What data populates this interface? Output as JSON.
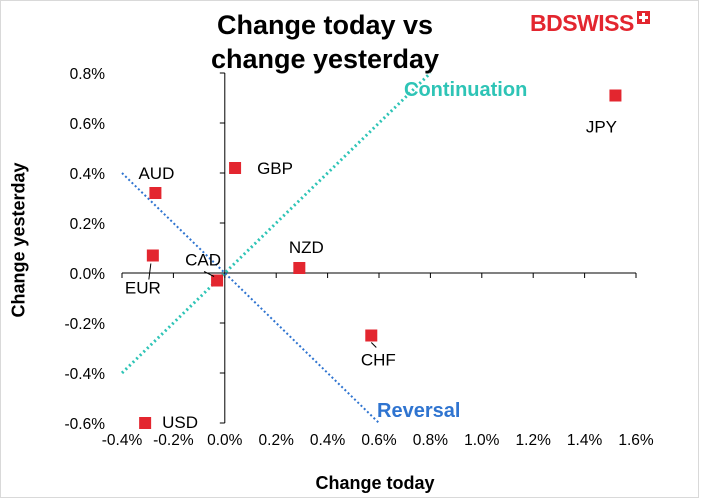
{
  "chart_data": {
    "type": "scatter",
    "title": "Change today vs change yesterday",
    "xlabel": "Change today",
    "ylabel": "Change yesterday",
    "xlim": [
      -0.4,
      1.6
    ],
    "ylim": [
      -0.6,
      0.8
    ],
    "x_ticks": [
      "-0.4%",
      "-0.2%",
      "0.0%",
      "0.2%",
      "0.4%",
      "0.6%",
      "0.8%",
      "1.0%",
      "1.2%",
      "1.4%",
      "1.6%"
    ],
    "y_ticks": [
      "0.8%",
      "0.6%",
      "0.4%",
      "0.2%",
      "0.0%",
      "-0.2%",
      "-0.4%",
      "-0.6%"
    ],
    "points": [
      {
        "label": "JPY",
        "x": 1.52,
        "y": 0.71
      },
      {
        "label": "GBP",
        "x": 0.04,
        "y": 0.42
      },
      {
        "label": "AUD",
        "x": -0.27,
        "y": 0.32
      },
      {
        "label": "EUR",
        "x": -0.28,
        "y": 0.07
      },
      {
        "label": "NZD",
        "x": 0.29,
        "y": 0.02
      },
      {
        "label": "CAD",
        "x": -0.03,
        "y": -0.03
      },
      {
        "label": "CHF",
        "x": 0.57,
        "y": -0.25
      },
      {
        "label": "USD",
        "x": -0.31,
        "y": -0.6
      }
    ],
    "lines": [
      {
        "name": "Continuation",
        "color": "#2ec4b6",
        "x": [
          -0.4,
          0.8
        ],
        "y": [
          -0.4,
          0.8
        ]
      },
      {
        "name": "Reversal",
        "color": "#2f74d0",
        "x": [
          -0.4,
          0.6
        ],
        "y": [
          0.4,
          -0.6
        ]
      }
    ],
    "marker_color": "#e3262f"
  },
  "title_lines": [
    "Change today vs",
    "change yesterday"
  ],
  "logo": {
    "text": "BDSWISS",
    "color": "#e3262f"
  }
}
